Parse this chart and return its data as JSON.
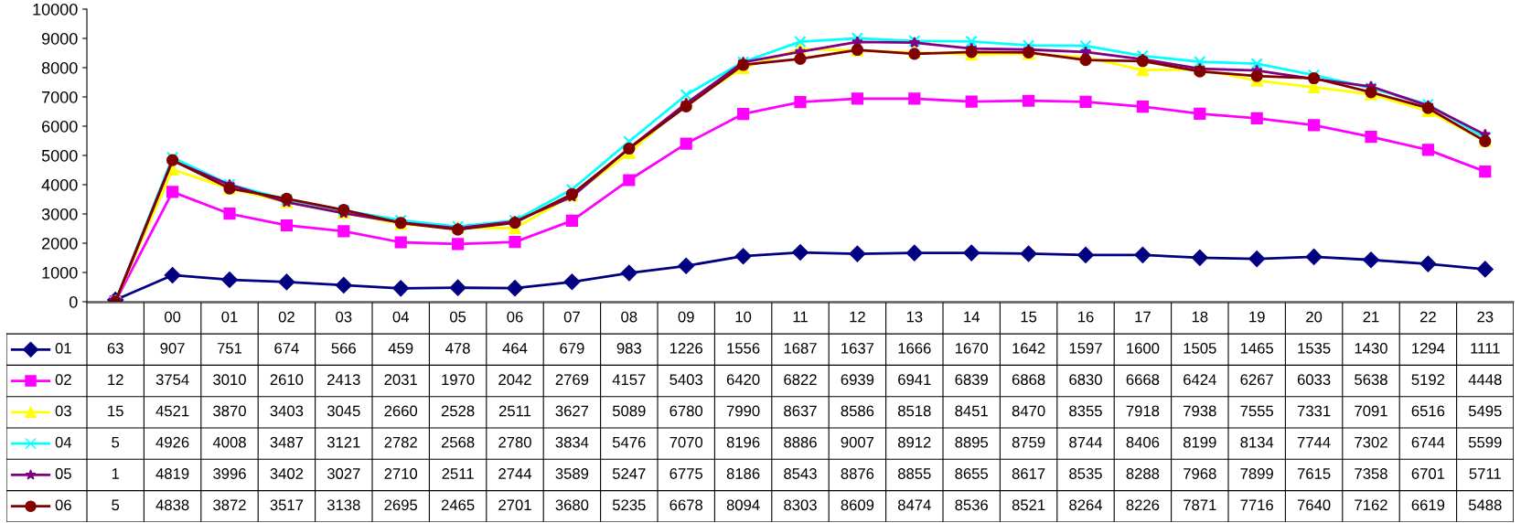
{
  "chart_data": {
    "type": "line",
    "categories": [
      null,
      "00",
      "01",
      "02",
      "03",
      "04",
      "05",
      "06",
      "07",
      "08",
      "09",
      "10",
      "11",
      "12",
      "13",
      "14",
      "15",
      "16",
      "17",
      "18",
      "19",
      "20",
      "21",
      "22",
      "23"
    ],
    "ylim": [
      0,
      10000
    ],
    "yticks": [
      0,
      1000,
      2000,
      3000,
      4000,
      5000,
      6000,
      7000,
      8000,
      9000,
      10000
    ],
    "grid": false,
    "data_labels": true,
    "legend": "left",
    "line_style": "solid",
    "series": [
      {
        "name": "01",
        "color": "#000080",
        "marker": "diamond",
        "values": [
          63,
          907,
          751,
          674,
          566,
          459,
          478,
          464,
          679,
          983,
          1226,
          1556,
          1687,
          1637,
          1666,
          1670,
          1642,
          1597,
          1600,
          1505,
          1465,
          1535,
          1430,
          1294,
          1111
        ]
      },
      {
        "name": "02",
        "color": "#ff00ff",
        "marker": "square",
        "values": [
          12,
          3754,
          3010,
          2610,
          2413,
          2031,
          1970,
          2042,
          2769,
          4157,
          5403,
          6420,
          6822,
          6939,
          6941,
          6839,
          6868,
          6830,
          6668,
          6424,
          6267,
          6033,
          5638,
          5192,
          4448
        ]
      },
      {
        "name": "03",
        "color": "#ffff00",
        "marker": "triangle",
        "values": [
          15,
          4521,
          3870,
          3403,
          3045,
          2660,
          2528,
          2511,
          3627,
          5089,
          6780,
          7990,
          8637,
          8586,
          8518,
          8451,
          8470,
          8355,
          7918,
          7938,
          7555,
          7331,
          7091,
          6516,
          5495
        ]
      },
      {
        "name": "04",
        "color": "#00ffff",
        "marker": "cross",
        "values": [
          5,
          4926,
          4008,
          3487,
          3121,
          2782,
          2568,
          2780,
          3834,
          5476,
          7070,
          8196,
          8886,
          9007,
          8912,
          8895,
          8759,
          8744,
          8406,
          8199,
          8134,
          7744,
          7302,
          6744,
          5599
        ]
      },
      {
        "name": "05",
        "color": "#800080",
        "marker": "star",
        "values": [
          1,
          4819,
          3996,
          3402,
          3027,
          2710,
          2511,
          2744,
          3589,
          5247,
          6775,
          8186,
          8543,
          8876,
          8855,
          8655,
          8617,
          8535,
          8288,
          7968,
          7899,
          7615,
          7358,
          6701,
          5711
        ]
      },
      {
        "name": "06",
        "color": "#800000",
        "marker": "circle",
        "values": [
          5,
          4838,
          3872,
          3517,
          3138,
          2695,
          2465,
          2701,
          3680,
          5235,
          6678,
          8094,
          8303,
          8609,
          8474,
          8536,
          8521,
          8264,
          8226,
          7871,
          7716,
          7640,
          7162,
          6619,
          5488
        ]
      }
    ]
  }
}
